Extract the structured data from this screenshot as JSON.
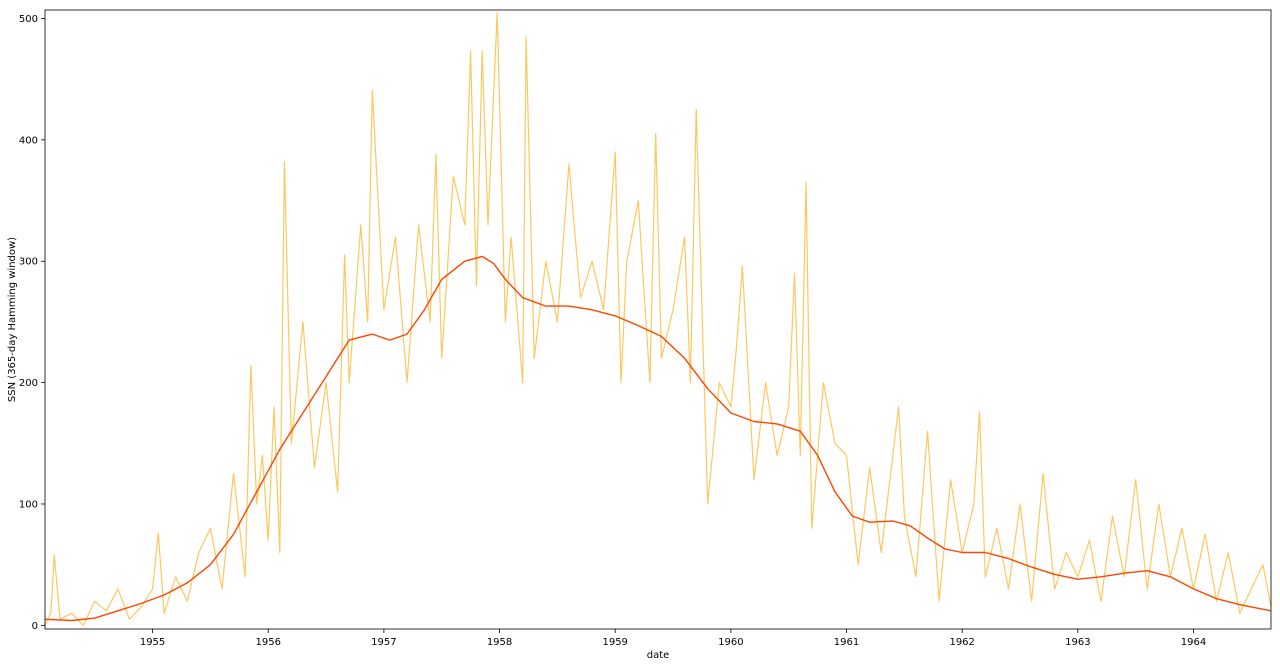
{
  "chart_data": {
    "type": "line",
    "title": "",
    "xlabel": "date",
    "ylabel": "SSN (365-day Hamming window)",
    "xlim": [
      1954.07,
      1964.67
    ],
    "ylim": [
      -3,
      507
    ],
    "grid": false,
    "x_ticks": [
      "1955",
      "1956",
      "1957",
      "1958",
      "1959",
      "1960",
      "1961",
      "1962",
      "1963",
      "1964"
    ],
    "y_ticks": [
      0,
      100,
      200,
      300,
      400,
      500
    ],
    "colors": {
      "daily": "#fdc75f",
      "smoothed": "#ff4500"
    },
    "series": [
      {
        "style": "raw",
        "x": [
          1954.07,
          1954.12,
          1954.15,
          1954.2,
          1954.3,
          1954.4,
          1954.5,
          1954.6,
          1954.7,
          1954.8,
          1954.9,
          1955.0,
          1955.05,
          1955.1,
          1955.2,
          1955.3,
          1955.4,
          1955.5,
          1955.6,
          1955.7,
          1955.8,
          1955.85,
          1955.9,
          1955.95,
          1956.0,
          1956.05,
          1956.1,
          1956.14,
          1956.2,
          1956.3,
          1956.4,
          1956.5,
          1956.6,
          1956.66,
          1956.7,
          1956.8,
          1956.86,
          1956.9,
          1957.0,
          1957.1,
          1957.2,
          1957.3,
          1957.4,
          1957.45,
          1957.5,
          1957.6,
          1957.7,
          1957.75,
          1957.8,
          1957.85,
          1957.9,
          1957.98,
          1958.05,
          1958.1,
          1958.2,
          1958.23,
          1958.3,
          1958.4,
          1958.5,
          1958.6,
          1958.7,
          1958.8,
          1958.9,
          1959.0,
          1959.05,
          1959.1,
          1959.2,
          1959.3,
          1959.35,
          1959.4,
          1959.5,
          1959.6,
          1959.65,
          1959.7,
          1959.8,
          1959.9,
          1960.0,
          1960.05,
          1960.1,
          1960.2,
          1960.3,
          1960.4,
          1960.5,
          1960.55,
          1960.6,
          1960.65,
          1960.7,
          1960.8,
          1960.9,
          1961.0,
          1961.1,
          1961.2,
          1961.3,
          1961.45,
          1961.5,
          1961.6,
          1961.7,
          1961.8,
          1961.9,
          1962.0,
          1962.1,
          1962.15,
          1962.2,
          1962.3,
          1962.4,
          1962.5,
          1962.6,
          1962.7,
          1962.8,
          1962.9,
          1963.0,
          1963.1,
          1963.2,
          1963.3,
          1963.4,
          1963.5,
          1963.6,
          1963.7,
          1963.8,
          1963.9,
          1964.0,
          1964.1,
          1964.2,
          1964.3,
          1964.4,
          1964.5,
          1964.6,
          1964.67
        ],
        "y": [
          0,
          10,
          58,
          5,
          10,
          0,
          20,
          12,
          30,
          5,
          15,
          30,
          76,
          10,
          40,
          20,
          60,
          80,
          30,
          125,
          40,
          214,
          100,
          140,
          70,
          180,
          60,
          382,
          150,
          250,
          130,
          200,
          110,
          305,
          200,
          330,
          250,
          441,
          260,
          320,
          200,
          330,
          250,
          388,
          220,
          370,
          330,
          473,
          280,
          473,
          330,
          505,
          250,
          320,
          200,
          485,
          220,
          300,
          250,
          380,
          270,
          300,
          260,
          390,
          200,
          300,
          350,
          200,
          405,
          220,
          260,
          320,
          200,
          425,
          100,
          200,
          180,
          230,
          296,
          120,
          200,
          140,
          180,
          290,
          140,
          365,
          80,
          200,
          150,
          140,
          50,
          130,
          60,
          180,
          90,
          40,
          160,
          20,
          120,
          60,
          100,
          176,
          40,
          80,
          30,
          100,
          20,
          125,
          30,
          60,
          40,
          70,
          20,
          90,
          40,
          120,
          30,
          100,
          40,
          80,
          30,
          75,
          20,
          60,
          10,
          30,
          50,
          15
        ]
      },
      {
        "style": "smoothed",
        "x": [
          1954.07,
          1954.3,
          1954.5,
          1954.7,
          1954.9,
          1955.1,
          1955.3,
          1955.5,
          1955.7,
          1955.9,
          1956.1,
          1956.3,
          1956.5,
          1956.7,
          1956.9,
          1957.05,
          1957.2,
          1957.35,
          1957.5,
          1957.7,
          1957.85,
          1957.95,
          1958.05,
          1958.2,
          1958.4,
          1958.6,
          1958.8,
          1959.0,
          1959.2,
          1959.4,
          1959.6,
          1959.8,
          1960.0,
          1960.2,
          1960.4,
          1960.6,
          1960.75,
          1960.9,
          1961.05,
          1961.2,
          1961.4,
          1961.55,
          1961.7,
          1961.85,
          1962.0,
          1962.2,
          1962.4,
          1962.6,
          1962.8,
          1963.0,
          1963.2,
          1963.4,
          1963.6,
          1963.8,
          1964.0,
          1964.2,
          1964.4,
          1964.67
        ],
        "y": [
          5,
          4,
          6,
          12,
          18,
          25,
          35,
          50,
          75,
          110,
          145,
          175,
          205,
          235,
          240,
          235,
          240,
          260,
          285,
          300,
          304,
          298,
          285,
          270,
          263,
          263,
          260,
          255,
          247,
          238,
          220,
          195,
          175,
          168,
          166,
          160,
          140,
          110,
          90,
          85,
          86,
          82,
          72,
          63,
          60,
          60,
          55,
          48,
          42,
          38,
          40,
          43,
          45,
          40,
          30,
          22,
          17,
          12
        ]
      }
    ]
  }
}
